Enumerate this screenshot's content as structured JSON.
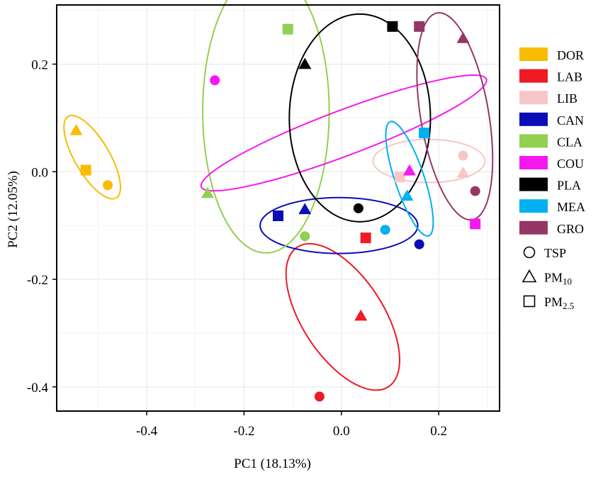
{
  "chart_data": {
    "type": "scatter",
    "xlabel": "PC1 (18.13%)",
    "ylabel": "PC2 (12.05%)",
    "xlim": [
      -0.585,
      0.325
    ],
    "ylim": [
      -0.445,
      0.31
    ],
    "xticks": [
      -0.4,
      -0.2,
      0.0,
      0.2
    ],
    "xtick_labels": [
      "-0.4",
      "-0.2",
      "0.0",
      "0.2"
    ],
    "yticks": [
      -0.4,
      -0.2,
      0.0,
      0.2
    ],
    "ytick_labels": [
      "-0.4",
      "-0.2",
      "0.0",
      "0.2"
    ],
    "grid": true,
    "legend_position": "right",
    "groups": [
      {
        "name": "DOR",
        "color": "#F8BC00"
      },
      {
        "name": "LAB",
        "color": "#EE1B24"
      },
      {
        "name": "LIB",
        "color": "#F8C6C6"
      },
      {
        "name": "CAN",
        "color": "#0D0DB6"
      },
      {
        "name": "CLA",
        "color": "#92D050"
      },
      {
        "name": "COU",
        "color": "#F518F1"
      },
      {
        "name": "PLA",
        "color": "#000000"
      },
      {
        "name": "MEA",
        "color": "#00B0F0"
      },
      {
        "name": "GRO",
        "color": "#953765"
      }
    ],
    "shape_legend": [
      {
        "shape": "circle",
        "label": "TSP",
        "sub": ""
      },
      {
        "shape": "triangle",
        "label": "PM",
        "sub": "10"
      },
      {
        "shape": "square",
        "label": "PM",
        "sub": "2.5"
      }
    ],
    "points": [
      {
        "group": "DOR",
        "shape": "triangle",
        "x": -0.545,
        "y": 0.077
      },
      {
        "group": "DOR",
        "shape": "square",
        "x": -0.525,
        "y": 0.003
      },
      {
        "group": "DOR",
        "shape": "circle",
        "x": -0.48,
        "y": -0.025
      },
      {
        "group": "LAB",
        "shape": "square",
        "x": 0.05,
        "y": -0.123
      },
      {
        "group": "LAB",
        "shape": "triangle",
        "x": 0.04,
        "y": -0.268
      },
      {
        "group": "LAB",
        "shape": "circle",
        "x": -0.045,
        "y": -0.418
      },
      {
        "group": "LIB",
        "shape": "square",
        "x": 0.12,
        "y": -0.01
      },
      {
        "group": "LIB",
        "shape": "circle",
        "x": 0.25,
        "y": 0.03
      },
      {
        "group": "LIB",
        "shape": "triangle",
        "x": 0.25,
        "y": -0.002
      },
      {
        "group": "CAN",
        "shape": "square",
        "x": -0.13,
        "y": -0.082
      },
      {
        "group": "CAN",
        "shape": "triangle",
        "x": -0.075,
        "y": -0.07
      },
      {
        "group": "CAN",
        "shape": "circle",
        "x": 0.16,
        "y": -0.135
      },
      {
        "group": "CLA",
        "shape": "square",
        "x": -0.11,
        "y": 0.265
      },
      {
        "group": "CLA",
        "shape": "triangle",
        "x": -0.275,
        "y": -0.04
      },
      {
        "group": "CLA",
        "shape": "circle",
        "x": -0.075,
        "y": -0.12
      },
      {
        "group": "COU",
        "shape": "circle",
        "x": -0.26,
        "y": 0.17
      },
      {
        "group": "COU",
        "shape": "triangle",
        "x": 0.14,
        "y": 0.002
      },
      {
        "group": "COU",
        "shape": "square",
        "x": 0.275,
        "y": -0.097
      },
      {
        "group": "PLA",
        "shape": "triangle",
        "x": -0.075,
        "y": 0.2
      },
      {
        "group": "PLA",
        "shape": "square",
        "x": 0.105,
        "y": 0.27
      },
      {
        "group": "PLA",
        "shape": "circle",
        "x": 0.035,
        "y": -0.068
      },
      {
        "group": "MEA",
        "shape": "square",
        "x": 0.17,
        "y": 0.072
      },
      {
        "group": "MEA",
        "shape": "triangle",
        "x": 0.135,
        "y": -0.045
      },
      {
        "group": "MEA",
        "shape": "circle",
        "x": 0.09,
        "y": -0.108
      },
      {
        "group": "GRO",
        "shape": "square",
        "x": 0.16,
        "y": 0.27
      },
      {
        "group": "GRO",
        "shape": "triangle",
        "x": 0.25,
        "y": 0.248
      },
      {
        "group": "GRO",
        "shape": "circle",
        "x": 0.275,
        "y": -0.036
      }
    ],
    "ellipses": [
      {
        "group": "DOR",
        "cx": -0.512,
        "cy": 0.027,
        "rx": 0.0355,
        "ry": 0.088,
        "angle_deg": 30.5
      },
      {
        "group": "LAB",
        "cx": 0.003,
        "cy": -0.27,
        "rx": 0.083,
        "ry": 0.155,
        "angle_deg": 33.2
      },
      {
        "group": "LIB",
        "cx": 0.18,
        "cy": 0.02,
        "rx": 0.115,
        "ry": 0.04,
        "angle_deg": 0
      },
      {
        "group": "CAN",
        "cx": -0.005,
        "cy": -0.1,
        "rx": 0.162,
        "ry": 0.052,
        "angle_deg": 0
      },
      {
        "group": "CLA",
        "cx": -0.155,
        "cy": 0.112,
        "rx": 0.13,
        "ry": 0.263,
        "angle_deg": 0
      },
      {
        "group": "COU",
        "cx": 0.005,
        "cy": 0.072,
        "rx": 0.313,
        "ry": 0.042,
        "angle_deg": 20.7
      },
      {
        "group": "PLA",
        "cx": 0.038,
        "cy": 0.1,
        "rx": 0.145,
        "ry": 0.193,
        "angle_deg": 0
      },
      {
        "group": "MEA",
        "cx": 0.14,
        "cy": -0.013,
        "rx": 0.03,
        "ry": 0.112,
        "angle_deg": 18.6
      },
      {
        "group": "GRO",
        "cx": 0.233,
        "cy": 0.103,
        "rx": 0.07,
        "ry": 0.195,
        "angle_deg": 9.6
      }
    ]
  }
}
